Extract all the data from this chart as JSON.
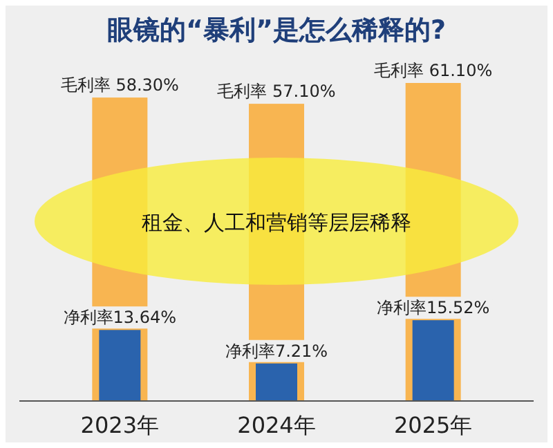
{
  "chart_data": {
    "type": "bar",
    "title": "眼镜的“暴利”是怎么稀释的?",
    "categories": [
      "2023年",
      "2024年",
      "2025年"
    ],
    "series": [
      {
        "color": "#f8b551",
        "values": [
          58.3,
          57.1,
          61.1
        ],
        "value_labels": [
          "毛利率 58.30%",
          "毛利率 57.10%",
          "毛利率 61.10%"
        ]
      },
      {
        "color": "#2a63ad",
        "values": [
          13.64,
          7.21,
          15.52
        ],
        "value_labels": [
          "净利率13.64%",
          "净利率7.21%",
          "净利率15.52%"
        ]
      }
    ],
    "annotations": [
      "租金、人工和营销等层层稀释"
    ]
  }
}
